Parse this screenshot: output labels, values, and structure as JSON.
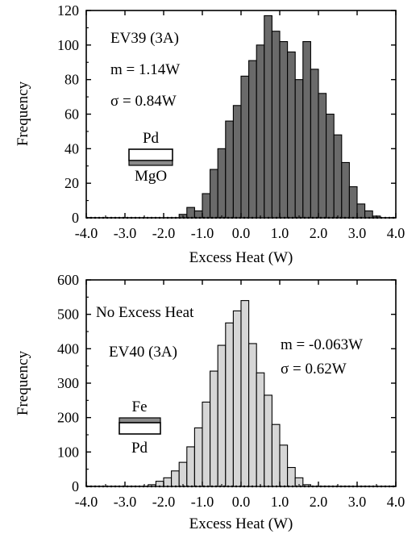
{
  "chart_data": [
    {
      "type": "bar",
      "subtype": "histogram",
      "bin_width": 0.2,
      "x": [
        -1.5,
        -1.3,
        -1.1,
        -0.9,
        -0.7,
        -0.5,
        -0.3,
        -0.1,
        0.1,
        0.3,
        0.5,
        0.7,
        0.9,
        1.1,
        1.3,
        1.5,
        1.7,
        1.9,
        2.1,
        2.3,
        2.5,
        2.7,
        2.9,
        3.1,
        3.3,
        3.5
      ],
      "values": [
        2,
        6,
        4,
        14,
        28,
        40,
        56,
        65,
        82,
        91,
        100,
        117,
        108,
        102,
        96,
        80,
        102,
        86,
        72,
        60,
        48,
        32,
        18,
        8,
        4,
        1
      ],
      "bar_color": "#6a6a6a",
      "xlabel": "Excess Heat (W)",
      "ylabel": "Frequency",
      "xlim": [
        -4.0,
        4.0
      ],
      "ylim": [
        0,
        120
      ],
      "xticks": [
        "-4.0",
        "-3.0",
        "-2.0",
        "-1.0",
        "0.0",
        "1.0",
        "2.0",
        "3.0",
        "4.0"
      ],
      "yticks": [
        "0",
        "20",
        "40",
        "60",
        "80",
        "100",
        "120"
      ],
      "annotations": [
        "EV39 (3A)",
        "m = 1.14W",
        "σ = 0.84W"
      ],
      "inset": {
        "top_label": "Pd",
        "bottom_label": "MgO"
      }
    },
    {
      "type": "bar",
      "subtype": "histogram",
      "bin_width": 0.2,
      "x": [
        -2.3,
        -2.1,
        -1.9,
        -1.7,
        -1.5,
        -1.3,
        -1.1,
        -0.9,
        -0.7,
        -0.5,
        -0.3,
        -0.1,
        0.1,
        0.3,
        0.5,
        0.7,
        0.9,
        1.1,
        1.3,
        1.5,
        1.7
      ],
      "values": [
        5,
        15,
        25,
        45,
        70,
        115,
        170,
        245,
        335,
        410,
        475,
        510,
        540,
        415,
        330,
        265,
        180,
        120,
        55,
        25,
        5
      ],
      "bar_color": "#d6d6d6",
      "xlabel": "Excess Heat (W)",
      "ylabel": "Frequency",
      "xlim": [
        -4.0,
        4.0
      ],
      "ylim": [
        0,
        600
      ],
      "xticks": [
        "-4.0",
        "-3.0",
        "-2.0",
        "-1.0",
        "0.0",
        "1.0",
        "2.0",
        "3.0",
        "4.0"
      ],
      "yticks": [
        "0",
        "100",
        "200",
        "300",
        "400",
        "500",
        "600"
      ],
      "annotations": [
        "No Excess Heat",
        "EV40 (3A)",
        "m = -0.063W",
        "σ = 0.62W"
      ],
      "inset": {
        "top_label": "Fe",
        "bottom_label": "Pd"
      }
    }
  ]
}
